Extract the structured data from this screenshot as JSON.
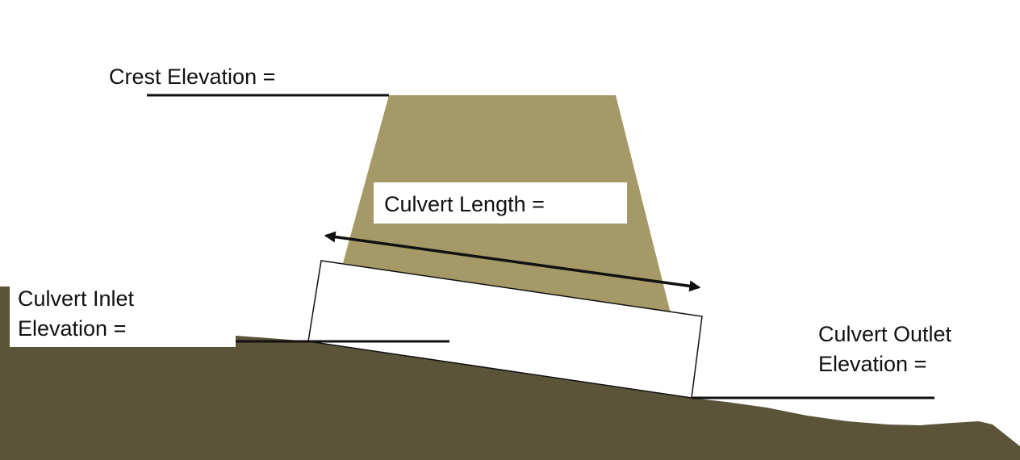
{
  "labels": {
    "crest": "Crest Elevation =",
    "length": "Culvert Length =",
    "inlet_line1": "Culvert Inlet",
    "inlet_line2": "Elevation =",
    "outlet_line1": "Culvert Outlet",
    "outlet_line2": "Elevation ="
  },
  "colors": {
    "embankment": "#a59a67",
    "ground": "#5b5438",
    "culvert": "#ffffff",
    "leader_line": "#111111",
    "arrow": "#111111"
  }
}
